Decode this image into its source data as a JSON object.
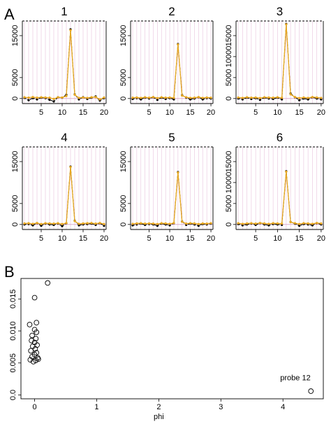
{
  "panels": {
    "a_label": "A",
    "b_label": "B"
  },
  "chart_data": [
    {
      "type": "line",
      "title": "1",
      "xticks": [
        5,
        10,
        15,
        20
      ],
      "yticks": [
        0,
        5000,
        15000
      ],
      "xlim": [
        0.5,
        20.5
      ],
      "ylim": [
        -1200,
        18500
      ],
      "x": [
        1,
        2,
        3,
        4,
        5,
        6,
        7,
        8,
        9,
        10,
        11,
        12,
        13,
        14,
        15,
        16,
        17,
        18,
        19,
        20
      ],
      "series": [
        {
          "color": "#000000",
          "values": [
            150,
            -400,
            100,
            -200,
            200,
            100,
            -300,
            -700,
            300,
            200,
            900,
            16500,
            1000,
            -200,
            300,
            -100,
            200,
            500,
            -500,
            100
          ]
        },
        {
          "color": "#e8a820",
          "values": [
            300,
            200,
            350,
            200,
            300,
            250,
            200,
            -100,
            300,
            250,
            600,
            16300,
            900,
            150,
            250,
            150,
            300,
            350,
            -200,
            250
          ]
        }
      ],
      "grid": "vertical"
    },
    {
      "type": "line",
      "title": "2",
      "xticks": [
        5,
        10,
        15,
        20
      ],
      "yticks": [
        0,
        5000,
        15000
      ],
      "xlim": [
        0.5,
        20.5
      ],
      "ylim": [
        -1200,
        18500
      ],
      "x": [
        1,
        2,
        3,
        4,
        5,
        6,
        7,
        8,
        9,
        10,
        11,
        12,
        13,
        14,
        15,
        16,
        17,
        18,
        19,
        20
      ],
      "series": [
        {
          "color": "#000000",
          "values": [
            -100,
            100,
            -200,
            200,
            0,
            300,
            -300,
            200,
            -100,
            100,
            -200,
            13000,
            800,
            200,
            -200,
            0,
            300,
            -200,
            100,
            0
          ]
        },
        {
          "color": "#e8a820",
          "values": [
            200,
            250,
            150,
            300,
            200,
            350,
            100,
            300,
            200,
            250,
            150,
            12900,
            700,
            300,
            150,
            200,
            350,
            150,
            250,
            200
          ]
        }
      ],
      "grid": "vertical"
    },
    {
      "type": "line",
      "title": "3",
      "xticks": [
        5,
        10,
        15,
        20
      ],
      "yticks": [
        0,
        5000,
        10000,
        15000
      ],
      "xlim": [
        0.5,
        20.5
      ],
      "ylim": [
        -1200,
        18500
      ],
      "x": [
        1,
        2,
        3,
        4,
        5,
        6,
        7,
        8,
        9,
        10,
        11,
        12,
        13,
        14,
        15,
        16,
        17,
        18,
        19,
        20
      ],
      "series": [
        {
          "color": "#000000",
          "values": [
            0,
            -200,
            200,
            -100,
            100,
            -300,
            200,
            0,
            -100,
            200,
            -200,
            17800,
            1200,
            300,
            -400,
            0,
            -200,
            300,
            0,
            -200
          ]
        },
        {
          "color": "#e8a820",
          "values": [
            250,
            150,
            300,
            200,
            250,
            100,
            300,
            250,
            200,
            300,
            150,
            17700,
            1000,
            350,
            100,
            250,
            150,
            350,
            250,
            150
          ]
        }
      ],
      "grid": "vertical"
    },
    {
      "type": "line",
      "title": "4",
      "xticks": [
        5,
        10,
        15,
        20
      ],
      "yticks": [
        0,
        5000,
        15000
      ],
      "xlim": [
        0.5,
        20.5
      ],
      "ylim": [
        -1200,
        18500
      ],
      "x": [
        1,
        2,
        3,
        4,
        5,
        6,
        7,
        8,
        9,
        10,
        11,
        12,
        13,
        14,
        15,
        16,
        17,
        18,
        19,
        20
      ],
      "series": [
        {
          "color": "#000000",
          "values": [
            0,
            100,
            -200,
            300,
            -300,
            200,
            0,
            -100,
            200,
            -400,
            300,
            13800,
            900,
            -200,
            0,
            100,
            200,
            -100,
            300,
            -300
          ]
        },
        {
          "color": "#e8a820",
          "values": [
            250,
            300,
            150,
            350,
            100,
            300,
            250,
            200,
            300,
            100,
            350,
            13700,
            800,
            150,
            250,
            300,
            350,
            200,
            350,
            100
          ]
        }
      ],
      "grid": "vertical"
    },
    {
      "type": "line",
      "title": "5",
      "xticks": [
        5,
        10,
        15,
        20
      ],
      "yticks": [
        0,
        5000,
        15000
      ],
      "xlim": [
        0.5,
        20.5
      ],
      "ylim": [
        -1200,
        18500
      ],
      "x": [
        1,
        2,
        3,
        4,
        5,
        6,
        7,
        8,
        9,
        10,
        11,
        12,
        13,
        14,
        15,
        16,
        17,
        18,
        19,
        20
      ],
      "series": [
        {
          "color": "#000000",
          "values": [
            -200,
            0,
            200,
            -100,
            100,
            0,
            -300,
            200,
            0,
            -200,
            300,
            12500,
            700,
            -100,
            200,
            0,
            -300,
            100,
            0,
            200
          ]
        },
        {
          "color": "#e8a820",
          "values": [
            150,
            250,
            300,
            200,
            250,
            200,
            100,
            300,
            250,
            150,
            350,
            12400,
            650,
            200,
            300,
            250,
            100,
            250,
            200,
            300
          ]
        }
      ],
      "grid": "vertical"
    },
    {
      "type": "line",
      "title": "6",
      "xticks": [
        5,
        10,
        15,
        20
      ],
      "yticks": [
        0,
        5000,
        10000,
        15000
      ],
      "xlim": [
        0.5,
        20.5
      ],
      "ylim": [
        -1200,
        18500
      ],
      "x": [
        1,
        2,
        3,
        4,
        5,
        6,
        7,
        8,
        9,
        10,
        11,
        12,
        13,
        14,
        15,
        16,
        17,
        18,
        19,
        20
      ],
      "series": [
        {
          "color": "#000000",
          "values": [
            100,
            -200,
            0,
            200,
            -100,
            300,
            0,
            -200,
            100,
            0,
            -100,
            12700,
            600,
            200,
            -300,
            100,
            0,
            -200,
            300,
            0
          ]
        },
        {
          "color": "#e8a820",
          "values": [
            300,
            150,
            250,
            300,
            200,
            350,
            250,
            150,
            300,
            250,
            200,
            12600,
            550,
            300,
            100,
            300,
            250,
            150,
            350,
            250
          ]
        }
      ],
      "grid": "vertical"
    },
    {
      "type": "scatter",
      "title": "",
      "xlabel": "phi",
      "ylabel": "",
      "xticks": [
        0,
        1,
        2,
        3,
        4
      ],
      "yticks": [
        0.0,
        0.005,
        0.01,
        0.015
      ],
      "ytick_labels": [
        "0.0",
        "0.005",
        "0.010",
        "0.015"
      ],
      "xlim": [
        -0.22,
        4.65
      ],
      "ylim": [
        -0.0006,
        0.0182
      ],
      "points": [
        {
          "x": 0.21,
          "y": 0.0175
        },
        {
          "x": 0.0,
          "y": 0.0152
        },
        {
          "x": -0.08,
          "y": 0.011
        },
        {
          "x": 0.03,
          "y": 0.0113
        },
        {
          "x": 0.0,
          "y": 0.0102
        },
        {
          "x": 0.03,
          "y": 0.0098
        },
        {
          "x": -0.04,
          "y": 0.0093
        },
        {
          "x": 0.02,
          "y": 0.0088
        },
        {
          "x": -0.05,
          "y": 0.0085
        },
        {
          "x": 0.0,
          "y": 0.0082
        },
        {
          "x": 0.04,
          "y": 0.0078
        },
        {
          "x": -0.03,
          "y": 0.0076
        },
        {
          "x": 0.01,
          "y": 0.0072
        },
        {
          "x": -0.06,
          "y": 0.0069
        },
        {
          "x": 0.03,
          "y": 0.0066
        },
        {
          "x": 0.0,
          "y": 0.0063
        },
        {
          "x": -0.04,
          "y": 0.006
        },
        {
          "x": 0.05,
          "y": 0.0058
        },
        {
          "x": -0.07,
          "y": 0.0055
        },
        {
          "x": 0.02,
          "y": 0.0054
        },
        {
          "x": -0.02,
          "y": 0.0052
        },
        {
          "x": 0.06,
          "y": 0.0056
        },
        {
          "x": 4.45,
          "y": 0.0006
        }
      ],
      "annotations": [
        {
          "text": "probe 12",
          "x": 4.2,
          "y": 0.0023
        }
      ]
    }
  ]
}
